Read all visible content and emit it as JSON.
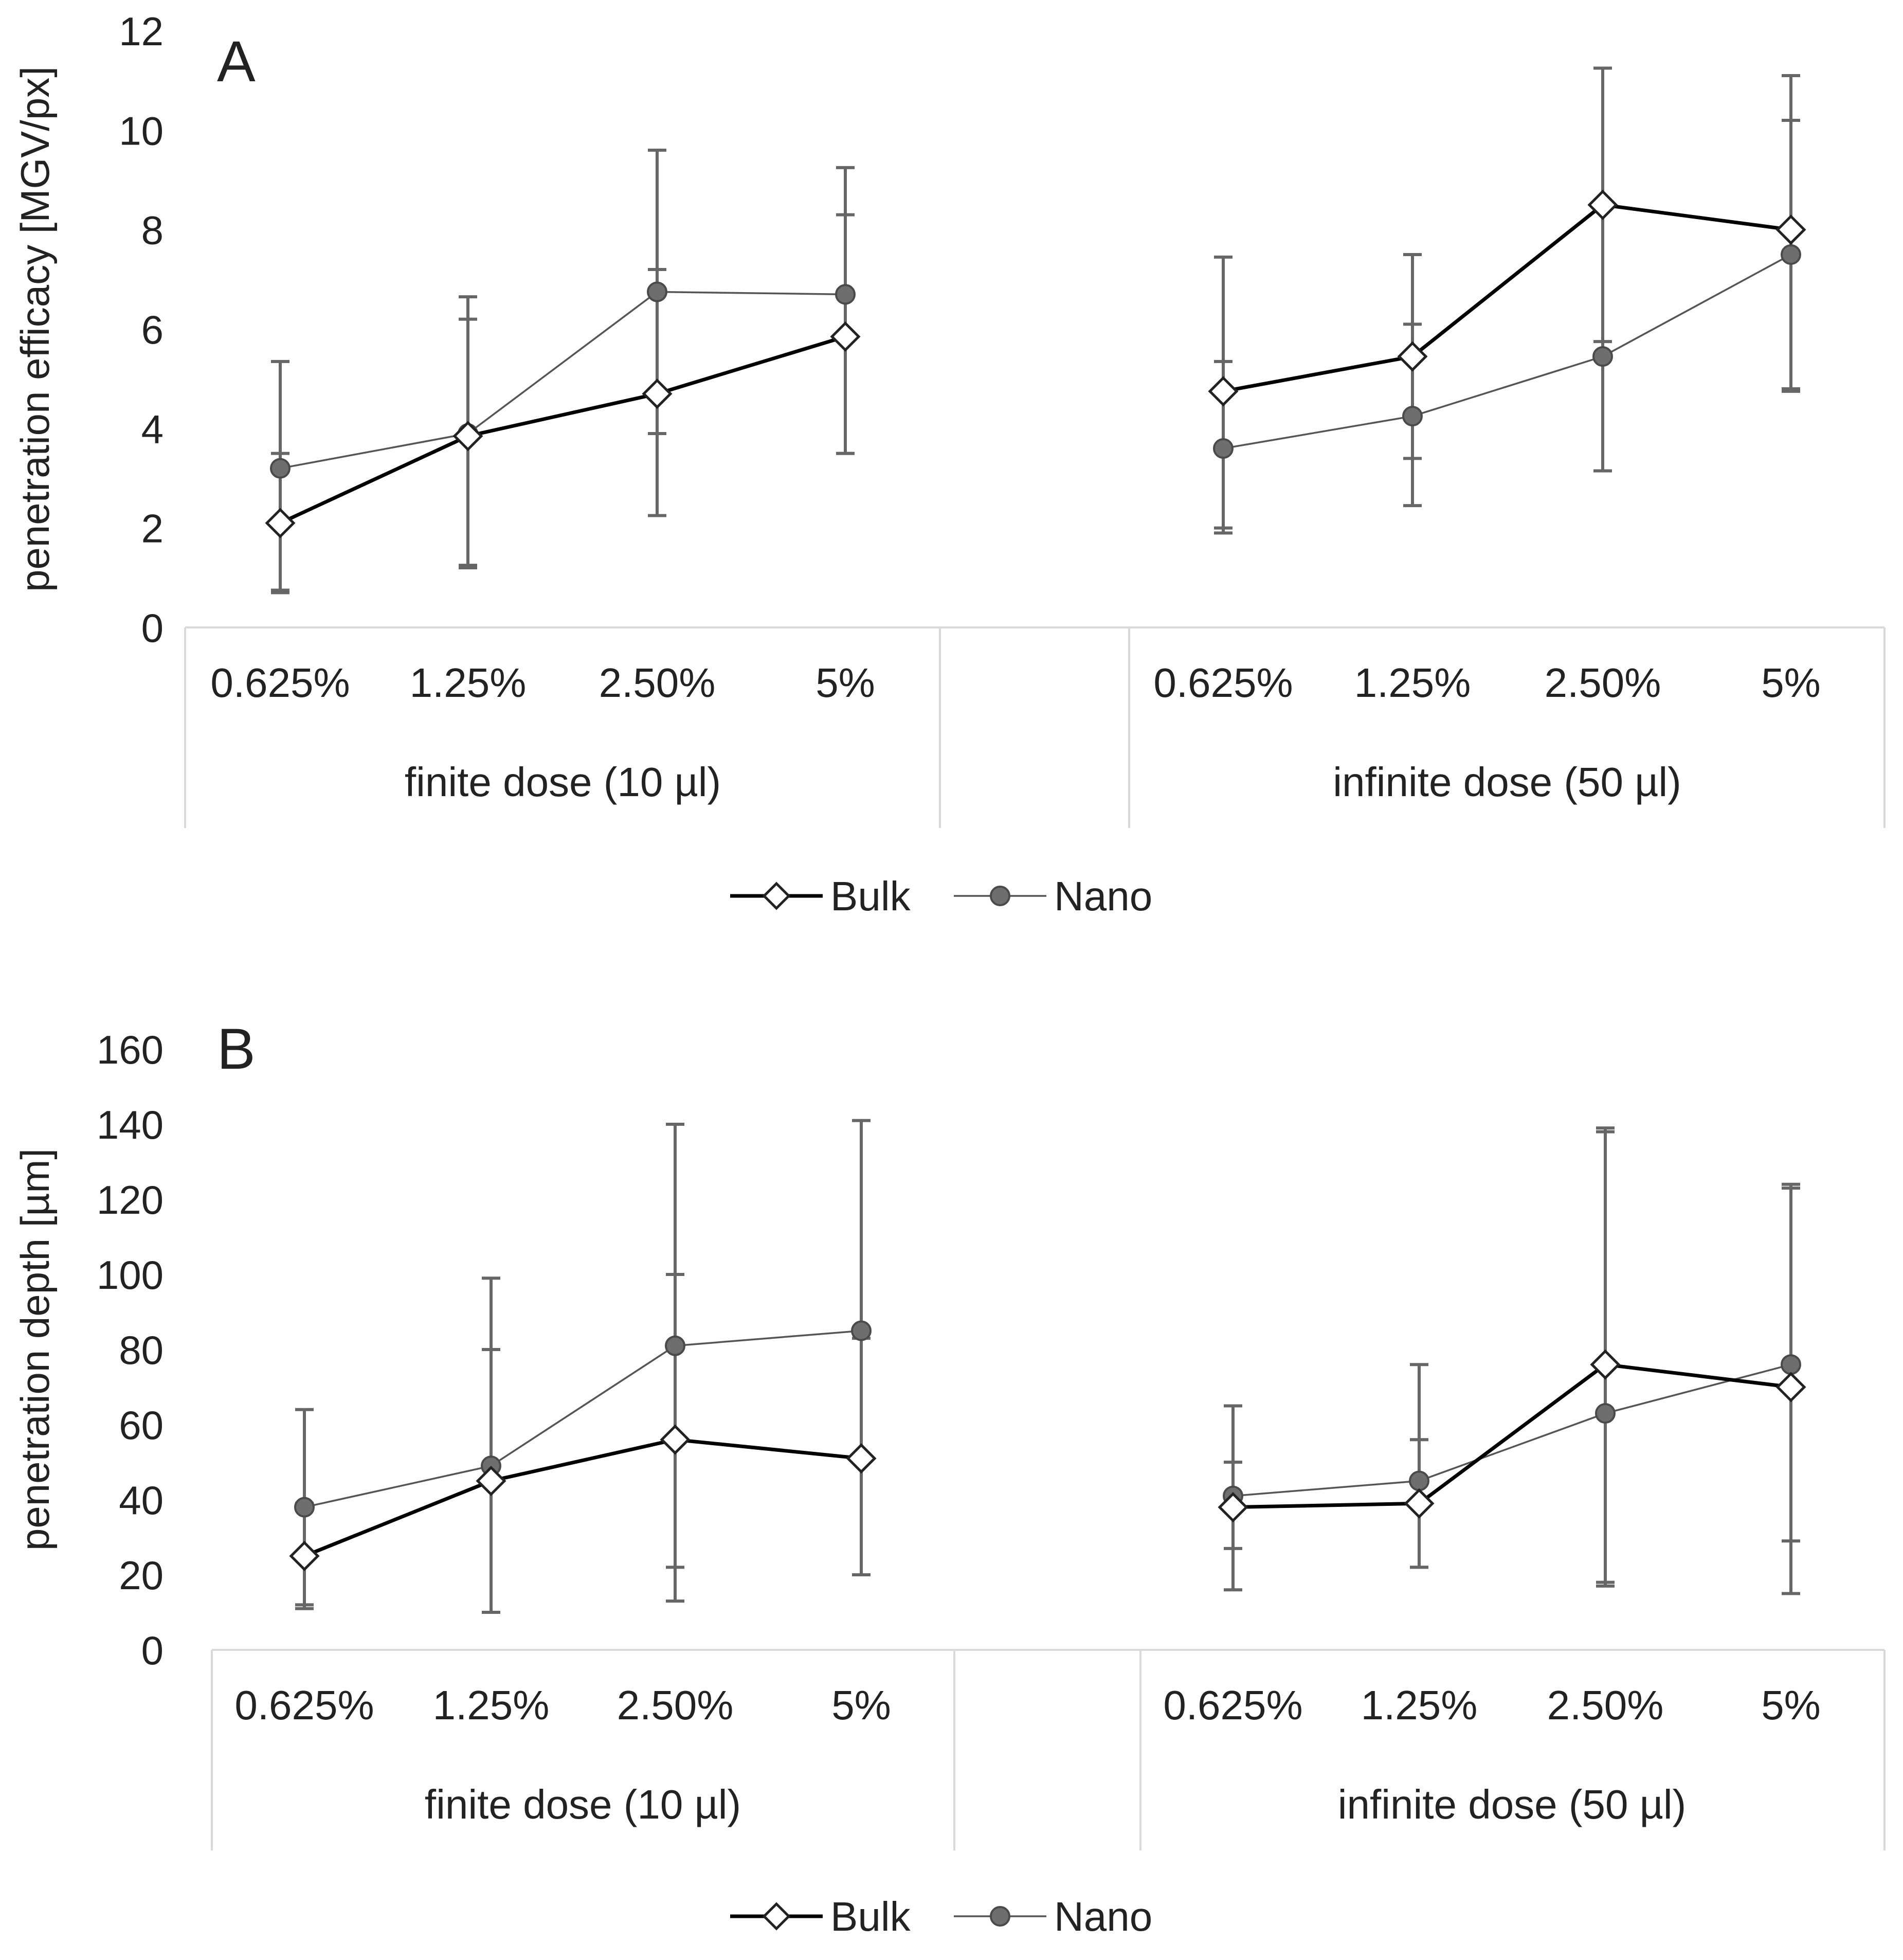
{
  "colors": {
    "bulk_line": "#000000",
    "bulk_marker_fill": "#ffffff",
    "nano_line": "#555555",
    "nano_marker_fill": "#6e6e6e",
    "error_bar": "#666666",
    "axis": "#d9d9d9",
    "text": "#222222"
  },
  "chart_data": [
    {
      "panel": "A",
      "type": "line",
      "ylabel": "penetration efficacy [MGV/px]",
      "ylim": [
        0,
        12
      ],
      "yticks": [
        0,
        2,
        4,
        6,
        8,
        10,
        12
      ],
      "grid": false,
      "legend_position": "bottom-center",
      "groups": [
        {
          "label": "finite dose (10 µl)",
          "categories": [
            "0.625%",
            "1.25%",
            "2.50%",
            "5%"
          ]
        },
        {
          "label": "infinite dose (50 µl)",
          "categories": [
            "0.625%",
            "1.25%",
            "2.50%",
            "5%"
          ]
        }
      ],
      "series": [
        {
          "name": "Bulk",
          "marker": "diamond",
          "groups": [
            {
              "values": [
                2.1,
                3.85,
                4.7,
                5.85
              ],
              "err_low": [
                1.4,
                2.6,
                0.8,
                2.35
              ],
              "err_high": [
                1.4,
                2.35,
                2.5,
                2.45
              ]
            },
            {
              "values": [
                4.75,
                5.45,
                8.5,
                8.0
              ],
              "err_low": [
                2.85,
                2.05,
                2.75,
                3.25
              ],
              "err_high": [
                0.6,
                0.65,
                2.75,
                2.2
              ]
            }
          ]
        },
        {
          "name": "Nano",
          "marker": "circle",
          "groups": [
            {
              "values": [
                3.2,
                3.9,
                6.75,
                6.7
              ],
              "err_low": [
                2.45,
                2.7,
                4.5,
                3.2
              ],
              "err_high": [
                2.15,
                2.75,
                2.85,
                2.55
              ]
            },
            {
              "values": [
                3.6,
                4.25,
                5.45,
                7.5
              ],
              "err_low": [
                1.6,
                1.8,
                2.3,
                2.7
              ],
              "err_high": [
                3.85,
                3.25,
                5.8,
                3.6
              ]
            }
          ]
        }
      ]
    },
    {
      "panel": "B",
      "type": "line",
      "ylabel": "penetration depth [µm]",
      "ylim": [
        0,
        160
      ],
      "yticks": [
        0,
        20,
        40,
        60,
        80,
        100,
        120,
        140,
        160
      ],
      "grid": false,
      "legend_position": "bottom-center",
      "groups": [
        {
          "label": "finite dose (10 µl)",
          "categories": [
            "0.625%",
            "1.25%",
            "2.50%",
            "5%"
          ]
        },
        {
          "label": "infinite dose (50 µl)",
          "categories": [
            "0.625%",
            "1.25%",
            "2.50%",
            "5%"
          ]
        }
      ],
      "series": [
        {
          "name": "Bulk",
          "marker": "diamond",
          "groups": [
            {
              "values": [
                25,
                45,
                56,
                51
              ],
              "err_low": [
                14,
                35,
                43,
                31
              ],
              "err_high": [
                14,
                35,
                44,
                32
              ]
            },
            {
              "values": [
                38,
                39,
                76,
                70
              ],
              "err_low": [
                11,
                17,
                59,
                41
              ],
              "err_high": [
                12,
                17,
                63,
                54
              ]
            }
          ]
        },
        {
          "name": "Nano",
          "marker": "circle",
          "groups": [
            {
              "values": [
                38,
                49,
                81,
                85
              ],
              "err_low": [
                26,
                39,
                59,
                65
              ],
              "err_high": [
                26,
                50,
                59,
                56
              ]
            },
            {
              "values": [
                41,
                45,
                63,
                76
              ],
              "err_low": [
                25,
                23,
                45,
                61
              ],
              "err_high": [
                24,
                31,
                75,
                47
              ]
            }
          ]
        }
      ]
    }
  ]
}
